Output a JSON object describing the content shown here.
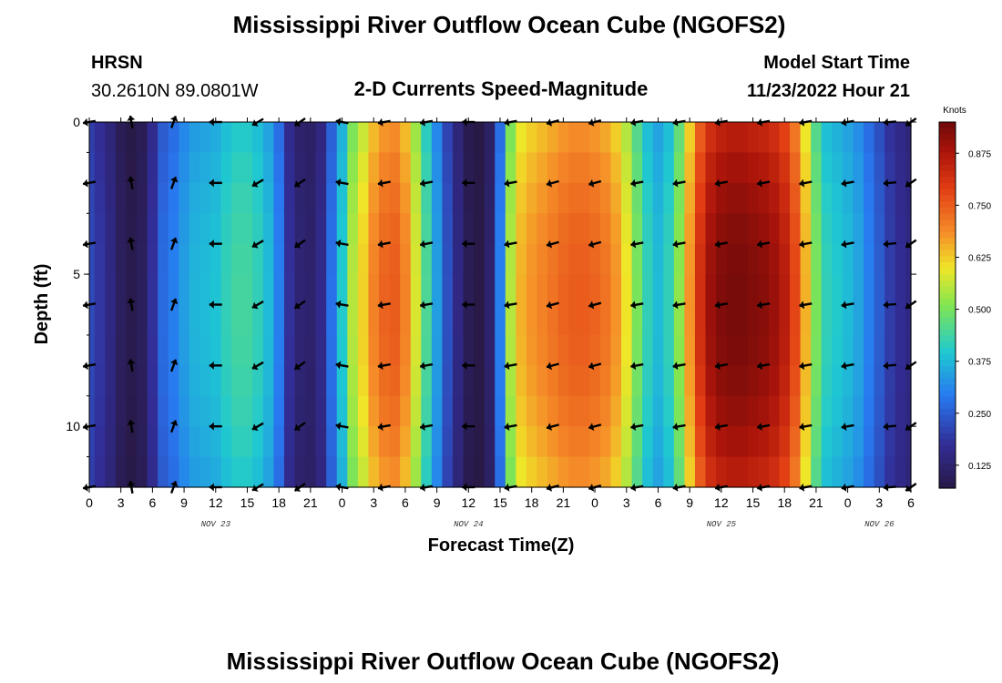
{
  "chart_data": {
    "type": "heatmap",
    "title": "Mississippi River Outflow Ocean Cube (NGOFS2)",
    "station": {
      "name": "HRSN",
      "coords": "30.2610N  89.0801W"
    },
    "subtitle": "2-D Currents Speed-Magnitude",
    "model_start": {
      "label": "Model Start Time",
      "value": "11/23/2022 Hour 21"
    },
    "xlabel": "Forecast Time(Z)",
    "ylabel": "Depth (ft)",
    "x_range_hours": [
      0,
      78
    ],
    "y_range_ft": [
      0,
      12
    ],
    "x_ticks": [
      {
        "h": 0,
        "label": "0"
      },
      {
        "h": 3,
        "label": "3"
      },
      {
        "h": 6,
        "label": "6"
      },
      {
        "h": 9,
        "label": "9"
      },
      {
        "h": 12,
        "label": "12"
      },
      {
        "h": 15,
        "label": "15"
      },
      {
        "h": 18,
        "label": "18"
      },
      {
        "h": 21,
        "label": "21"
      },
      {
        "h": 24,
        "label": "0"
      },
      {
        "h": 27,
        "label": "3"
      },
      {
        "h": 30,
        "label": "6"
      },
      {
        "h": 33,
        "label": "9"
      },
      {
        "h": 36,
        "label": "12"
      },
      {
        "h": 39,
        "label": "15"
      },
      {
        "h": 42,
        "label": "18"
      },
      {
        "h": 45,
        "label": "21"
      },
      {
        "h": 48,
        "label": "0"
      },
      {
        "h": 51,
        "label": "3"
      },
      {
        "h": 54,
        "label": "6"
      },
      {
        "h": 57,
        "label": "9"
      },
      {
        "h": 60,
        "label": "12"
      },
      {
        "h": 63,
        "label": "15"
      },
      {
        "h": 66,
        "label": "18"
      },
      {
        "h": 69,
        "label": "21"
      },
      {
        "h": 72,
        "label": "0"
      },
      {
        "h": 75,
        "label": "3"
      },
      {
        "h": 78,
        "label": "6"
      }
    ],
    "date_labels": [
      {
        "h": 12,
        "label": "NOV 23"
      },
      {
        "h": 36,
        "label": "NOV 24"
      },
      {
        "h": 60,
        "label": "NOV 25"
      },
      {
        "h": 75,
        "label": "NOV 26"
      }
    ],
    "y_ticks": [
      {
        "ft": 0,
        "label": "0"
      },
      {
        "ft": 5,
        "label": "5"
      },
      {
        "ft": 10,
        "label": "10"
      }
    ],
    "colorbar": {
      "unit": "Knots",
      "min": 0.07,
      "max": 0.95,
      "ticks": [
        {
          "v": 0.125,
          "label": "0.125"
        },
        {
          "v": 0.25,
          "label": "0.250"
        },
        {
          "v": 0.375,
          "label": "0.375"
        },
        {
          "v": 0.5,
          "label": "0.500"
        },
        {
          "v": 0.625,
          "label": "0.625"
        },
        {
          "v": 0.75,
          "label": "0.750"
        },
        {
          "v": 0.875,
          "label": "0.875"
        }
      ]
    },
    "speed_profile_hours": [
      0,
      1,
      2,
      3,
      4,
      5,
      6,
      7,
      8,
      9,
      10,
      11,
      12,
      13,
      14,
      15,
      16,
      17,
      18,
      19,
      20,
      21,
      22,
      23,
      24,
      25,
      26,
      27,
      28,
      29,
      30,
      31,
      32,
      33,
      34,
      35,
      36,
      37,
      38,
      39,
      40,
      41,
      42,
      43,
      44,
      45,
      46,
      47,
      48,
      49,
      50,
      51,
      52,
      53,
      54,
      55,
      56,
      57,
      58,
      59,
      60,
      61,
      62,
      63,
      64,
      65,
      66,
      67,
      68,
      69,
      70,
      71,
      72,
      73,
      74,
      75,
      76,
      77,
      78
    ],
    "speed_profile_knots": [
      0.22,
      0.19,
      0.15,
      0.1,
      0.08,
      0.1,
      0.18,
      0.27,
      0.3,
      0.34,
      0.37,
      0.38,
      0.39,
      0.42,
      0.44,
      0.44,
      0.42,
      0.38,
      0.3,
      0.18,
      0.13,
      0.12,
      0.16,
      0.28,
      0.4,
      0.55,
      0.62,
      0.7,
      0.74,
      0.75,
      0.7,
      0.58,
      0.45,
      0.34,
      0.23,
      0.15,
      0.09,
      0.07,
      0.12,
      0.3,
      0.55,
      0.65,
      0.68,
      0.7,
      0.72,
      0.74,
      0.75,
      0.75,
      0.74,
      0.72,
      0.68,
      0.6,
      0.5,
      0.42,
      0.38,
      0.42,
      0.52,
      0.68,
      0.82,
      0.9,
      0.93,
      0.94,
      0.94,
      0.93,
      0.92,
      0.9,
      0.86,
      0.78,
      0.65,
      0.5,
      0.42,
      0.4,
      0.38,
      0.35,
      0.3,
      0.25,
      0.2,
      0.17,
      0.15
    ],
    "vector_hours": [
      0,
      4,
      8,
      12,
      16,
      20,
      24,
      28,
      32,
      36,
      40,
      44,
      48,
      52,
      56,
      60,
      64,
      68,
      72,
      76,
      78
    ],
    "vector_depths_ft": [
      0,
      2,
      4,
      6,
      8,
      10,
      12
    ],
    "vector_directions_deg": [
      190,
      100,
      70,
      180,
      210,
      215,
      170,
      190,
      190,
      180,
      190,
      195,
      195,
      190,
      190,
      190,
      190,
      190,
      190,
      185,
      215
    ]
  }
}
